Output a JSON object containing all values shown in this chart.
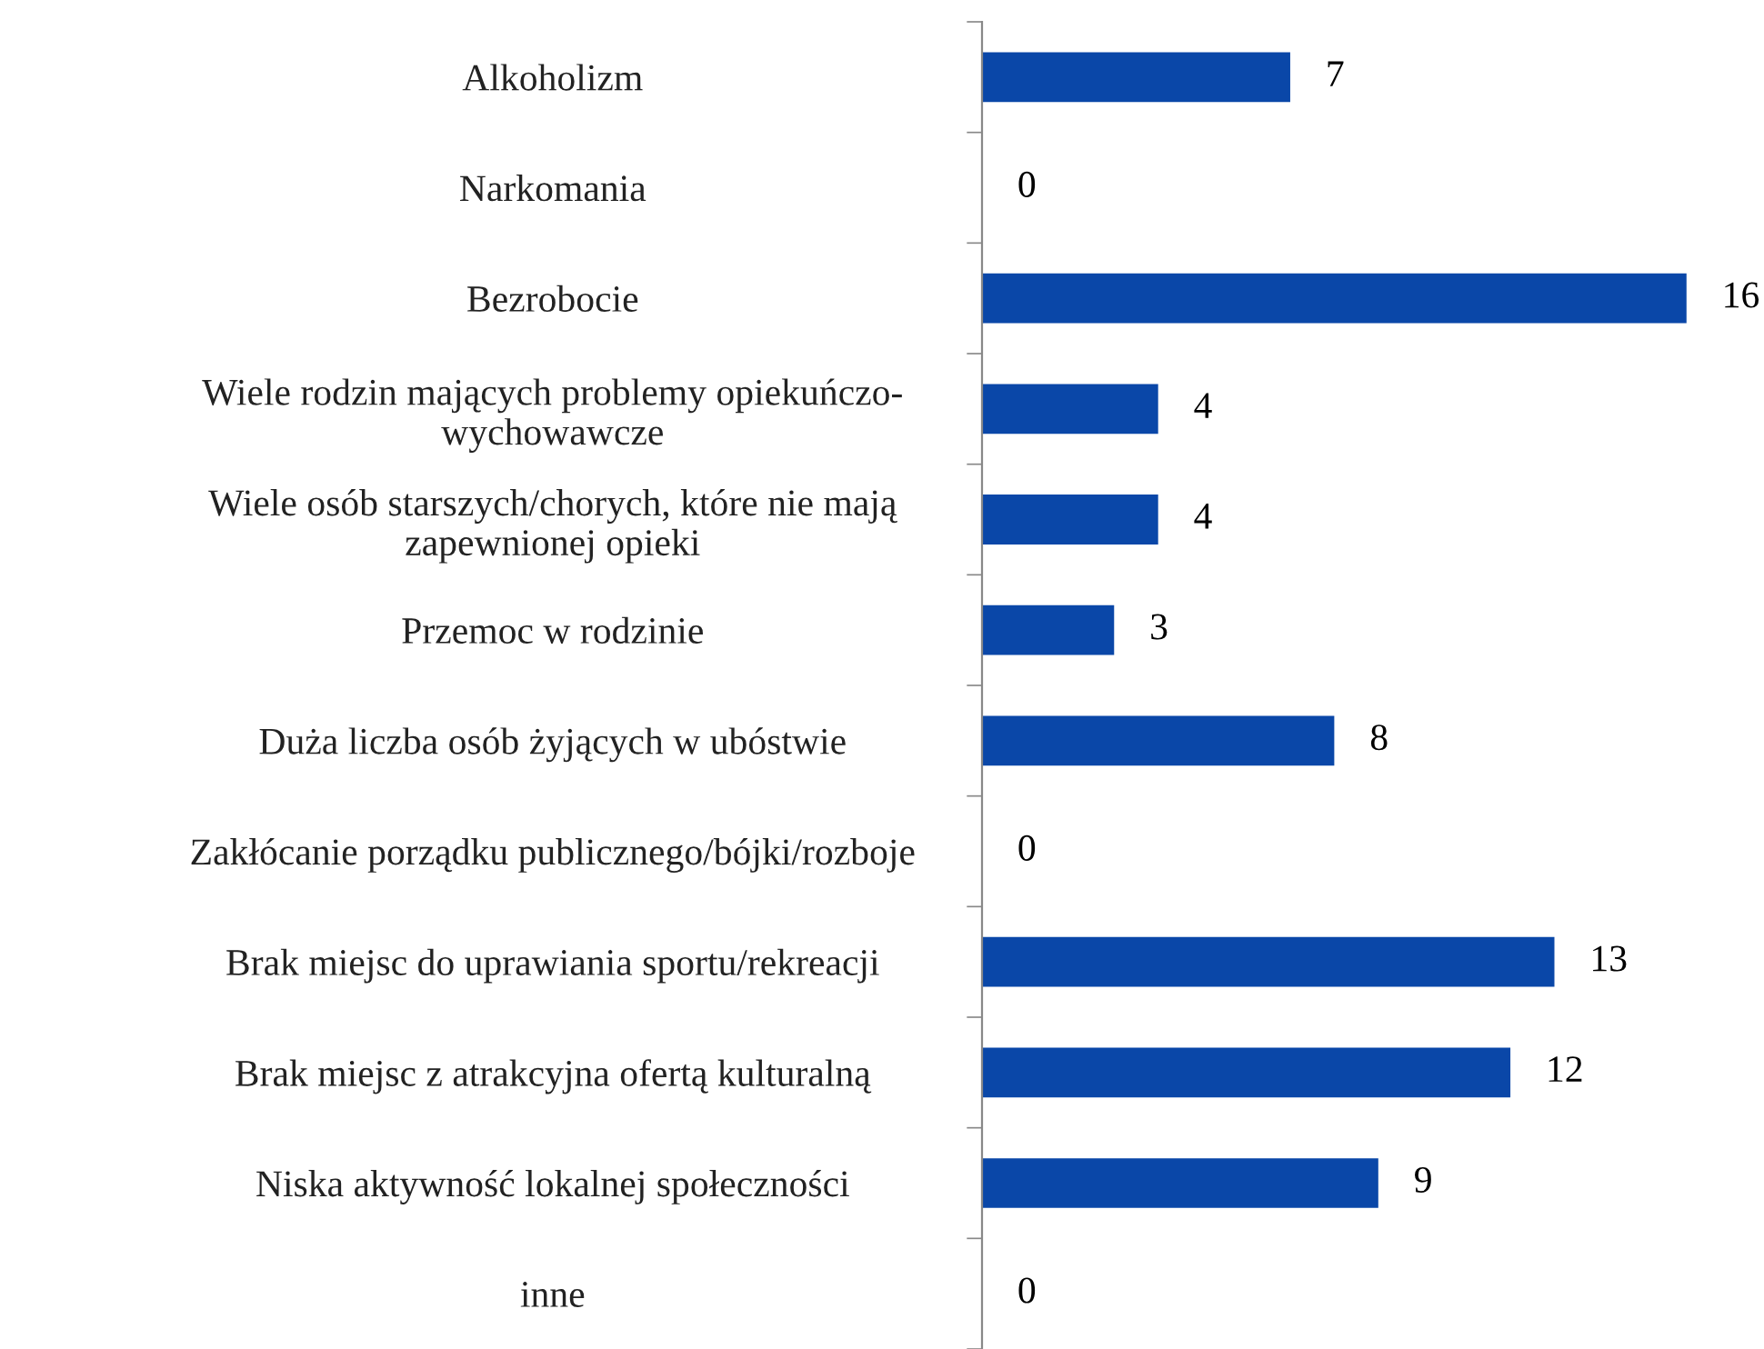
{
  "chart_data": {
    "type": "bar",
    "orientation": "horizontal",
    "categories": [
      "Alkoholizm",
      "Narkomania",
      "Bezrobocie",
      "Wiele rodzin mających problemy opiekuńczo-\nwychowawcze",
      "Wiele osób starszych/chorych, które nie mają\nzapewnionej opieki",
      "Przemoc w rodzinie",
      "Duża liczba osób żyjących w ubóstwie",
      "Zakłócanie porządku publicznego/bójki/rozboje",
      "Brak miejsc do uprawiania sportu/rekreacji",
      "Brak miejsc z atrakcyjna ofertą kulturalną",
      "Niska aktywność lokalnej społeczności",
      "inne"
    ],
    "values": [
      7,
      0,
      16,
      4,
      4,
      3,
      8,
      0,
      13,
      12,
      9,
      0
    ],
    "color": "#0a47a8",
    "data_labels": true,
    "grid": false,
    "legend": false
  }
}
